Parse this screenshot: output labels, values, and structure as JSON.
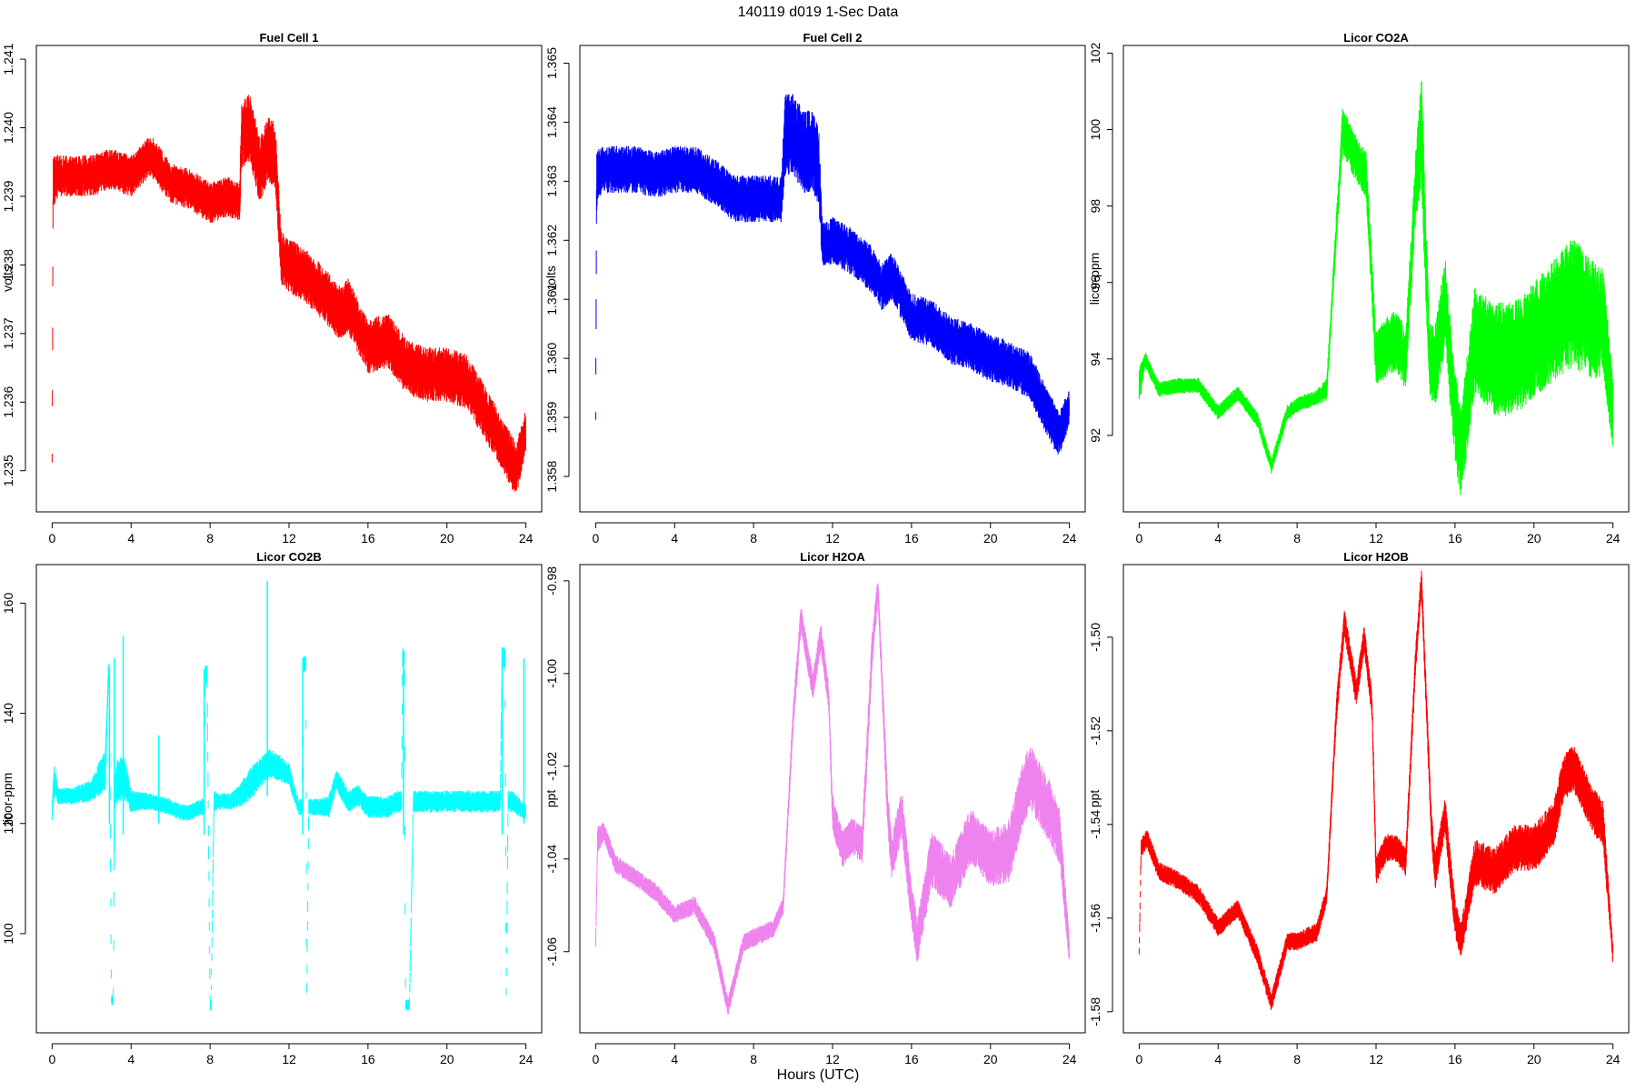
{
  "figure": {
    "title": "140119   d019   1-Sec Data",
    "xlabel": "Hours (UTC)"
  },
  "chart_data": [
    {
      "type": "line",
      "title": "Fuel Cell 1",
      "ylabel": "volts",
      "color": "#ff0000",
      "xlim": [
        -0.8,
        24.8
      ],
      "ylim": [
        1.2344,
        1.2412
      ],
      "xticks": [
        0,
        4,
        8,
        12,
        16,
        20,
        24
      ],
      "yticks": [
        1.235,
        1.236,
        1.237,
        1.238,
        1.239,
        1.24,
        1.241
      ],
      "ytick_labels": [
        "1.235",
        "1.236",
        "1.237",
        "1.238",
        "1.239",
        "1.240",
        "1.241"
      ],
      "band": {
        "x": [
          0,
          0.05,
          0.3,
          1,
          2,
          3,
          4,
          5,
          6,
          7,
          8,
          9,
          9.5,
          9.6,
          10,
          10.5,
          11,
          11.3,
          11.6,
          12,
          13,
          14,
          14.5,
          15,
          16,
          17,
          18,
          19,
          20,
          21,
          22,
          23,
          23.5,
          24
        ],
        "center": [
          1.2352,
          1.2392,
          1.2393,
          1.2393,
          1.2393,
          1.2394,
          1.2393,
          1.2396,
          1.2392,
          1.2391,
          1.2389,
          1.239,
          1.2389,
          1.2399,
          1.24,
          1.2394,
          1.2397,
          1.2396,
          1.2381,
          1.238,
          1.2378,
          1.2375,
          1.2373,
          1.2374,
          1.2368,
          1.2369,
          1.2365,
          1.2364,
          1.2364,
          1.2363,
          1.2358,
          1.2353,
          1.235,
          1.2356
        ],
        "halfwidth": [
          0.0001,
          0.0004,
          0.0003,
          0.0003,
          0.0003,
          0.0003,
          0.0003,
          0.0003,
          0.0003,
          0.0003,
          0.0003,
          0.0003,
          0.0003,
          0.0005,
          0.0005,
          0.0005,
          0.0005,
          0.0005,
          0.0004,
          0.0004,
          0.0004,
          0.0004,
          0.0004,
          0.0004,
          0.0004,
          0.0004,
          0.0004,
          0.0004,
          0.0004,
          0.0004,
          0.0004,
          0.0004,
          0.0004,
          0.0003
        ]
      }
    },
    {
      "type": "line",
      "title": "Fuel Cell 2",
      "ylabel": "volts",
      "color": "#0000ff",
      "xlim": [
        -0.8,
        24.8
      ],
      "ylim": [
        1.3574,
        1.3653
      ],
      "xticks": [
        0,
        4,
        8,
        12,
        16,
        20,
        24
      ],
      "yticks": [
        1.358,
        1.359,
        1.36,
        1.361,
        1.362,
        1.363,
        1.364,
        1.365
      ],
      "ytick_labels": [
        "1.358",
        "1.359",
        "1.360",
        "1.361",
        "1.362",
        "1.363",
        "1.364",
        "1.365"
      ],
      "band": {
        "x": [
          0,
          0.05,
          0.3,
          1,
          2,
          3,
          4,
          5,
          6,
          7,
          8,
          9,
          9.4,
          9.6,
          10,
          10.5,
          11,
          11.3,
          11.5,
          12,
          13,
          14,
          14.5,
          15,
          16,
          17,
          18,
          19,
          20,
          21,
          22,
          23,
          23.5,
          24
        ],
        "center": [
          1.359,
          1.363,
          1.3632,
          1.3632,
          1.3632,
          1.3631,
          1.3632,
          1.3632,
          1.363,
          1.3627,
          1.3627,
          1.3627,
          1.3627,
          1.3638,
          1.3638,
          1.3635,
          1.3635,
          1.3632,
          1.3619,
          1.362,
          1.3618,
          1.3615,
          1.3612,
          1.3614,
          1.3607,
          1.3606,
          1.3603,
          1.3602,
          1.36,
          1.3599,
          1.3597,
          1.359,
          1.3587,
          1.3592
        ],
        "halfwidth": [
          0.0001,
          0.0005,
          0.0004,
          0.0004,
          0.0004,
          0.0004,
          0.0004,
          0.0004,
          0.0004,
          0.0004,
          0.0004,
          0.0004,
          0.0004,
          0.0007,
          0.0007,
          0.0007,
          0.0007,
          0.0007,
          0.0004,
          0.0004,
          0.0004,
          0.0004,
          0.0004,
          0.0004,
          0.0004,
          0.0004,
          0.0004,
          0.0004,
          0.0004,
          0.0004,
          0.0004,
          0.0004,
          0.0004,
          0.0003
        ]
      }
    },
    {
      "type": "line",
      "title": "Licor CO2A",
      "ylabel": "licor-ppm",
      "color": "#00ff00",
      "xlim": [
        -0.8,
        24.8
      ],
      "ylim": [
        90.0,
        102.2
      ],
      "xticks": [
        0,
        4,
        8,
        12,
        16,
        20,
        24
      ],
      "yticks": [
        92,
        94,
        96,
        98,
        100,
        102
      ],
      "ytick_labels": [
        "92",
        "94",
        "96",
        "98",
        "100",
        "102"
      ],
      "band": {
        "x": [
          0,
          0.3,
          1,
          2,
          3,
          4,
          5,
          6,
          6.7,
          7.5,
          8,
          9,
          9.5,
          10,
          10.3,
          11,
          11.5,
          12,
          12.5,
          13,
          13.5,
          14,
          14.3,
          14.7,
          15,
          15.5,
          16,
          16.3,
          17,
          18,
          19,
          20,
          21,
          22,
          23,
          23.5,
          24
        ],
        "center": [
          93.3,
          94.0,
          93.2,
          93.3,
          93.3,
          92.6,
          93.1,
          92.4,
          91.2,
          92.6,
          92.8,
          93.0,
          93.2,
          97.5,
          100.0,
          99.2,
          98.8,
          94.0,
          94.3,
          94.5,
          94.0,
          98.5,
          100.0,
          94.0,
          93.8,
          95.5,
          92.5,
          91.5,
          94.5,
          94.0,
          94.0,
          94.5,
          95.0,
          95.5,
          95.0,
          95.0,
          92.5
        ],
        "halfwidth": [
          0.5,
          0.2,
          0.2,
          0.2,
          0.2,
          0.2,
          0.2,
          0.2,
          0.2,
          0.2,
          0.2,
          0.2,
          0.3,
          0.4,
          0.6,
          0.6,
          0.6,
          0.7,
          0.8,
          0.8,
          0.8,
          0.9,
          1.5,
          1.0,
          1.1,
          1.2,
          1.2,
          1.2,
          1.4,
          1.5,
          1.5,
          1.5,
          1.6,
          1.7,
          1.6,
          1.4,
          1.0
        ]
      }
    },
    {
      "type": "line",
      "title": "Licor CO2B",
      "ylabel": "licor-ppm",
      "color": "#00ffff",
      "xlim": [
        -0.8,
        24.8
      ],
      "ylim": [
        82.0,
        167.0
      ],
      "xticks": [
        0,
        4,
        8,
        12,
        16,
        20,
        24
      ],
      "yticks": [
        100,
        120,
        140,
        160
      ],
      "ytick_labels": [
        "100",
        "120",
        "140",
        "160"
      ],
      "band": {
        "x": [
          0,
          0.1,
          0.3,
          1,
          2,
          2.7,
          2.85,
          2.9,
          3.0,
          3.1,
          3.15,
          3.3,
          3.7,
          4,
          5,
          6,
          6.5,
          7,
          7.5,
          7.7,
          7.75,
          7.85,
          8.0,
          8.05,
          8.2,
          8.5,
          9,
          9.5,
          10,
          11,
          11.5,
          12,
          12.3,
          12.5,
          12.65,
          12.7,
          12.85,
          12.9,
          13.0,
          13.5,
          14,
          14.4,
          15,
          15.5,
          16,
          17,
          17.5,
          17.7,
          17.75,
          17.85,
          17.9,
          18.1,
          18.3,
          19,
          20,
          21,
          22,
          22.6,
          22.7,
          22.8,
          22.95,
          23.0,
          23.1,
          23.3,
          24
        ],
        "center": [
          122,
          128,
          125,
          125,
          126,
          130,
          147,
          147,
          88,
          88,
          125,
          128,
          128,
          124,
          124,
          123,
          122,
          122,
          123,
          123,
          147,
          147,
          87,
          87,
          124,
          124,
          124,
          125,
          127,
          131,
          130,
          129,
          125,
          123,
          123,
          149,
          149,
          89,
          123,
          123,
          123,
          128,
          124,
          125,
          123,
          123,
          124,
          124,
          150,
          150,
          87,
          87,
          124,
          124,
          124,
          124,
          124,
          124,
          124,
          150,
          150,
          89,
          124,
          124,
          122
        ],
        "halfwidth": [
          1.5,
          3,
          1.5,
          1.5,
          2,
          4,
          2,
          2,
          1,
          1,
          3,
          4,
          4,
          2,
          1.5,
          1.5,
          1.5,
          1.5,
          1.5,
          1.5,
          2,
          2,
          1,
          1,
          2,
          1.5,
          1.5,
          2,
          3,
          2.5,
          2.5,
          2,
          1.5,
          1.5,
          1.5,
          1.5,
          1.5,
          1,
          1.5,
          1.5,
          2,
          2,
          2,
          2,
          2,
          2,
          2,
          2,
          2,
          2,
          1,
          1,
          2,
          2,
          2,
          2,
          2,
          2,
          2,
          2,
          2,
          1,
          2,
          2,
          1.5
        ]
      },
      "spikes": [
        {
          "x": 2.9,
          "y1": 120,
          "y2": 148
        },
        {
          "x": 3.15,
          "y1": 115,
          "y2": 150
        },
        {
          "x": 3.6,
          "y1": 118,
          "y2": 154
        },
        {
          "x": 5.4,
          "y1": 120,
          "y2": 136
        },
        {
          "x": 7.7,
          "y1": 118,
          "y2": 148
        },
        {
          "x": 10.9,
          "y1": 125,
          "y2": 164
        },
        {
          "x": 12.7,
          "y1": 118,
          "y2": 150
        },
        {
          "x": 17.8,
          "y1": 118,
          "y2": 151
        },
        {
          "x": 22.8,
          "y1": 118,
          "y2": 152
        },
        {
          "x": 23.9,
          "y1": 120,
          "y2": 150
        }
      ]
    },
    {
      "type": "line",
      "title": "Licor H2OA",
      "ylabel": "ppt",
      "color": "#ee82ee",
      "xlim": [
        -0.8,
        24.8
      ],
      "ylim": [
        -1.0775,
        -0.9765
      ],
      "xticks": [
        0,
        4,
        8,
        12,
        16,
        20,
        24
      ],
      "yticks": [
        -1.06,
        -1.04,
        -1.02,
        -1.0,
        -0.98
      ],
      "ytick_labels": [
        "-1.06",
        "-1.04",
        "-1.02",
        "-1.00",
        "-0.98"
      ],
      "band": {
        "x": [
          0,
          0.1,
          0.4,
          1,
          2,
          3,
          4,
          5,
          6,
          6.7,
          7.5,
          8,
          9,
          9.5,
          10,
          10.4,
          11,
          11.4,
          11.8,
          12,
          12.5,
          13,
          13.5,
          14,
          14.3,
          14.8,
          15,
          15.5,
          16,
          16.3,
          17,
          18,
          19,
          20,
          21,
          21.5,
          22,
          23,
          23.5,
          24
        ],
        "center": [
          -1.058,
          -1.036,
          -1.034,
          -1.041,
          -1.044,
          -1.047,
          -1.052,
          -1.05,
          -1.058,
          -1.072,
          -1.058,
          -1.057,
          -1.055,
          -1.05,
          -1.01,
          -0.988,
          -1.003,
          -0.992,
          -1.005,
          -1.03,
          -1.038,
          -1.035,
          -1.037,
          -0.995,
          -0.982,
          -1.03,
          -1.04,
          -1.03,
          -1.05,
          -1.058,
          -1.04,
          -1.045,
          -1.035,
          -1.04,
          -1.038,
          -1.028,
          -1.022,
          -1.03,
          -1.035,
          -1.06
        ],
        "halfwidth": [
          0.002,
          0.003,
          0.002,
          0.002,
          0.002,
          0.002,
          0.002,
          0.002,
          0.002,
          0.002,
          0.002,
          0.002,
          0.002,
          0.002,
          0.003,
          0.003,
          0.003,
          0.003,
          0.003,
          0.004,
          0.004,
          0.004,
          0.004,
          0.004,
          0.003,
          0.005,
          0.005,
          0.005,
          0.005,
          0.005,
          0.006,
          0.006,
          0.006,
          0.006,
          0.007,
          0.007,
          0.007,
          0.007,
          0.006,
          0.003
        ]
      }
    },
    {
      "type": "line",
      "title": "Licor H2OB",
      "ylabel": "ppt",
      "color": "#ff0000",
      "xlim": [
        -0.8,
        24.8
      ],
      "ylim": [
        -1.5845,
        -1.4845
      ],
      "xticks": [
        0,
        4,
        8,
        12,
        16,
        20,
        24
      ],
      "yticks": [
        -1.58,
        -1.56,
        -1.54,
        -1.52,
        -1.5
      ],
      "ytick_labels": [
        "-1.58",
        "-1.56",
        "-1.54",
        "-1.52",
        "-1.50"
      ],
      "band": {
        "x": [
          0,
          0.1,
          0.4,
          1,
          2,
          3,
          4,
          5,
          6,
          6.7,
          7.5,
          8,
          9,
          9.5,
          10,
          10.4,
          11,
          11.4,
          11.8,
          12,
          12.5,
          13,
          13.5,
          14,
          14.3,
          14.8,
          15,
          15.5,
          16,
          16.3,
          17,
          18,
          19,
          20,
          21,
          21.5,
          22,
          23,
          23.5,
          24
        ],
        "center": [
          -1.567,
          -1.545,
          -1.543,
          -1.55,
          -1.552,
          -1.555,
          -1.562,
          -1.558,
          -1.568,
          -1.578,
          -1.565,
          -1.565,
          -1.563,
          -1.555,
          -1.515,
          -1.497,
          -1.512,
          -1.5,
          -1.515,
          -1.55,
          -1.545,
          -1.545,
          -1.548,
          -1.505,
          -1.488,
          -1.54,
          -1.55,
          -1.538,
          -1.56,
          -1.565,
          -1.548,
          -1.55,
          -1.545,
          -1.545,
          -1.54,
          -1.53,
          -1.528,
          -1.537,
          -1.54,
          -1.568
        ],
        "halfwidth": [
          0.001,
          0.002,
          0.002,
          0.002,
          0.002,
          0.002,
          0.002,
          0.002,
          0.002,
          0.002,
          0.002,
          0.002,
          0.002,
          0.002,
          0.003,
          0.003,
          0.003,
          0.003,
          0.003,
          0.003,
          0.003,
          0.003,
          0.003,
          0.003,
          0.003,
          0.004,
          0.004,
          0.004,
          0.004,
          0.004,
          0.005,
          0.005,
          0.005,
          0.005,
          0.005,
          0.005,
          0.005,
          0.005,
          0.005,
          0.002
        ]
      }
    }
  ]
}
